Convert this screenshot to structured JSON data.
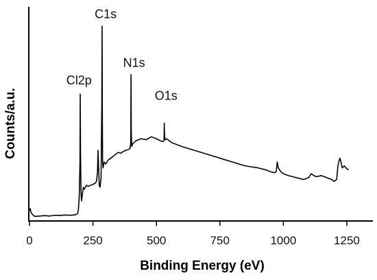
{
  "chart_data": {
    "type": "line",
    "title": "",
    "xlabel": "Binding Energy (eV)",
    "ylabel": "Counts/a.u.",
    "xlim": [
      0,
      1350
    ],
    "ylim": [
      0,
      100
    ],
    "x_ticks": [
      0,
      250,
      500,
      750,
      1000,
      1250
    ],
    "y_ticks_shown": false,
    "grid": false,
    "legend": "none",
    "line_color": "#000000",
    "series": [
      {
        "x": [
          0,
          3,
          6,
          12,
          20,
          40,
          60,
          80,
          100,
          120,
          140,
          160,
          180,
          190,
          193,
          196,
          199,
          200,
          201,
          203,
          205,
          208,
          212,
          216,
          220,
          225,
          232,
          240,
          250,
          258,
          264,
          268,
          270,
          272,
          275,
          278,
          282,
          285,
          286,
          287,
          288,
          290,
          294,
          300,
          310,
          320,
          330,
          340,
          350,
          360,
          370,
          380,
          390,
          396,
          399,
          400,
          401,
          403,
          407,
          412,
          420,
          440,
          460,
          480,
          500,
          515,
          525,
          530,
          531,
          532,
          534,
          540,
          560,
          580,
          600,
          650,
          700,
          750,
          800,
          850,
          900,
          930,
          950,
          965,
          972,
          976,
          980,
          990,
          1000,
          1020,
          1050,
          1080,
          1100,
          1110,
          1120,
          1130,
          1150,
          1170,
          1190,
          1200,
          1210,
          1215,
          1220,
          1223,
          1227,
          1232,
          1240,
          1250,
          1257
        ],
        "y": [
          5,
          6,
          4,
          3,
          2,
          2.2,
          2.4,
          2.2,
          2.6,
          2.5,
          2.7,
          2.6,
          2.8,
          3.5,
          6,
          12,
          30,
          65,
          35,
          15,
          10,
          13,
          17,
          16,
          17,
          18,
          17.5,
          18,
          18.5,
          19,
          20,
          25,
          36,
          28,
          18,
          17,
          22,
          60,
          100,
          55,
          30,
          27,
          30,
          29,
          31,
          32,
          33,
          34,
          35,
          34.5,
          35.5,
          36,
          36.5,
          37,
          40,
          75,
          45,
          38,
          39.5,
          40,
          41,
          42,
          41.5,
          43,
          42,
          41,
          40.5,
          41,
          50,
          44,
          41.5,
          42,
          40,
          39,
          38,
          36,
          34,
          32,
          30,
          28,
          27,
          26,
          25,
          24.5,
          25,
          30,
          27,
          25,
          24,
          23,
          22,
          21,
          22,
          24,
          23,
          22.5,
          23,
          22,
          21,
          20,
          21,
          28,
          31,
          32,
          30,
          27,
          28,
          26.5,
          26
        ]
      }
    ],
    "annotations": [
      {
        "text": "Cl2p",
        "x": 195,
        "y": 70
      },
      {
        "text": "C1s",
        "x": 300,
        "y": 104
      },
      {
        "text": "N1s",
        "x": 412,
        "y": 79
      },
      {
        "text": "O1s",
        "x": 538,
        "y": 62
      }
    ]
  }
}
